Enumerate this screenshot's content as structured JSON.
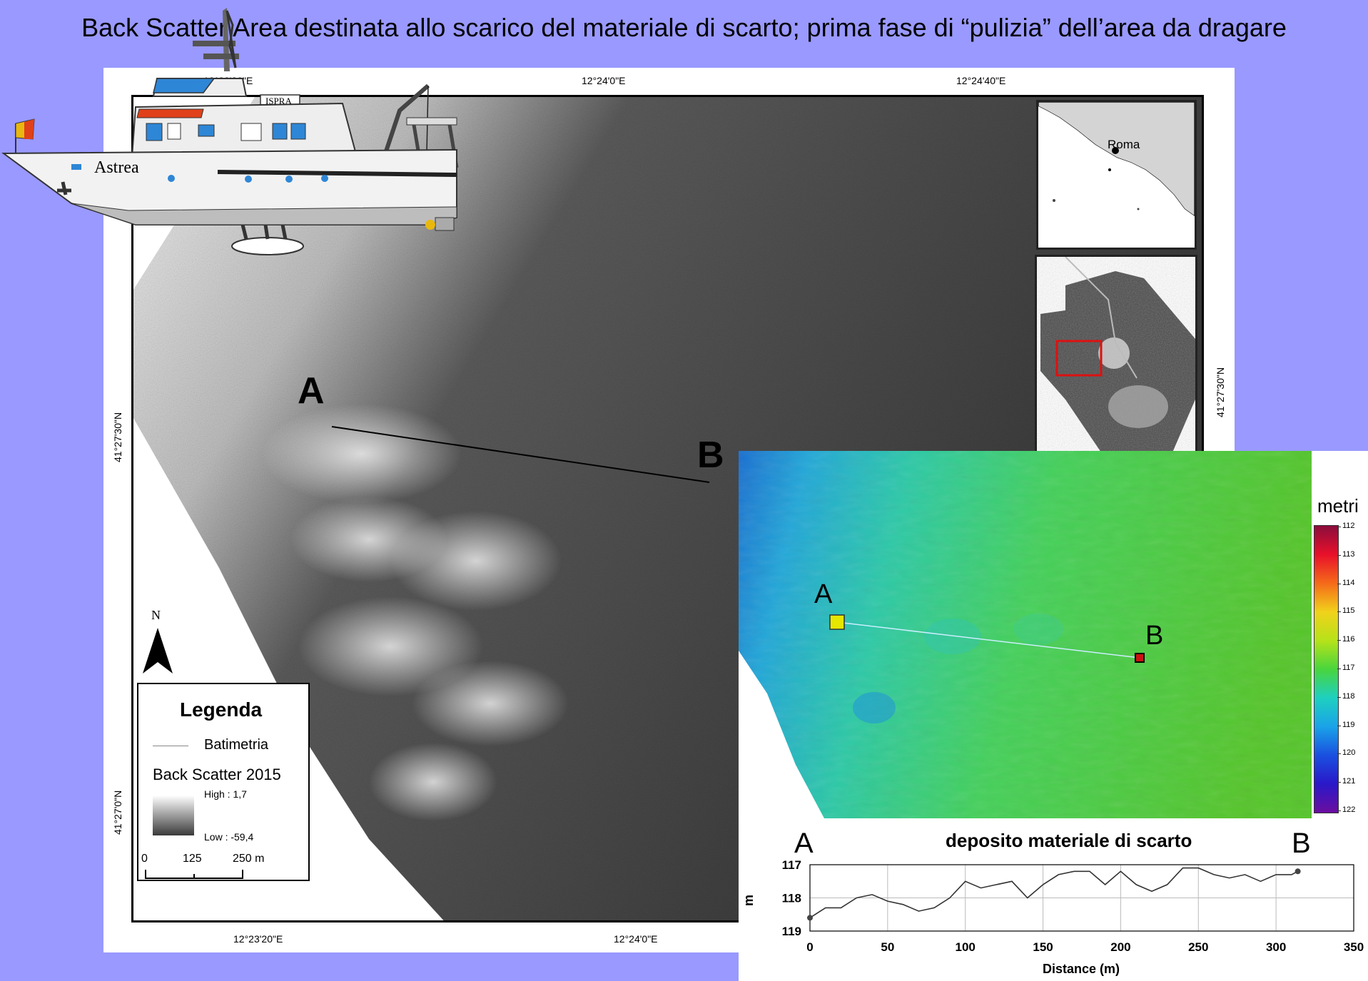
{
  "title": "Back Scatter Area destinata allo scarico del materiale di scarto; prima fase di “pulizia” dell’area da dragare",
  "map": {
    "top_coords": [
      "12°23'20\"E",
      "12°24'0\"E",
      "12°24'40\"E"
    ],
    "bottom_coords": [
      "12°23'20\"E",
      "12°24'0\"E"
    ],
    "left_coords": [
      "41°27'30\"N",
      "41°27'0\"N"
    ],
    "right_coords": [
      "41°27'30\"N"
    ],
    "point_a": "A",
    "point_b": "B",
    "north": "N"
  },
  "inset": {
    "city": "Roma"
  },
  "ship": {
    "name": "Astrea",
    "brand": "ISPRA"
  },
  "legend": {
    "title": "Legenda",
    "line_label": "Batimetria",
    "raster_label": "Back Scatter 2015",
    "high": "High : 1,7",
    "low": "Low : -59,4",
    "scale": [
      "0",
      "125",
      "250 m"
    ]
  },
  "bathy": {
    "point_a": "A",
    "point_b": "B",
    "colorbar": {
      "title": "metri",
      "ticks": [
        "112",
        "113",
        "114",
        "115",
        "116",
        "117",
        "118",
        "119",
        "120",
        "121",
        "122"
      ]
    }
  },
  "profile": {
    "title": "deposito materiale di scarto",
    "label_a": "A",
    "label_b": "B",
    "ylabel": "m",
    "xlabel": "Distance (m)",
    "yticks": [
      "117",
      "118",
      "119"
    ],
    "xticks": [
      "0",
      "50",
      "100",
      "150",
      "200",
      "250",
      "300",
      "350"
    ]
  },
  "chart_data": {
    "type": "line",
    "title": "deposito materiale di scarto",
    "xlabel": "Distance (m)",
    "ylabel": "m",
    "xlim": [
      0,
      350
    ],
    "ylim": [
      119,
      117
    ],
    "grid": true,
    "x": [
      0,
      10,
      20,
      30,
      40,
      50,
      60,
      70,
      80,
      90,
      100,
      110,
      120,
      130,
      140,
      150,
      160,
      170,
      180,
      190,
      200,
      210,
      220,
      230,
      240,
      250,
      260,
      270,
      280,
      290,
      300,
      310,
      314
    ],
    "values": [
      118.6,
      118.3,
      118.3,
      118.0,
      117.9,
      118.1,
      118.2,
      118.4,
      118.3,
      118.0,
      117.5,
      117.7,
      117.6,
      117.5,
      118.0,
      117.6,
      117.3,
      117.2,
      117.2,
      117.6,
      117.2,
      117.6,
      117.8,
      117.6,
      117.1,
      117.1,
      117.3,
      117.4,
      117.3,
      117.5,
      117.3,
      117.3,
      117.2
    ]
  },
  "colors": {
    "background": "#9999ff",
    "line": "#000000",
    "inset_box": "#dd1111",
    "point_a_marker": "#e6e600",
    "point_b_marker": "#cc1111"
  }
}
